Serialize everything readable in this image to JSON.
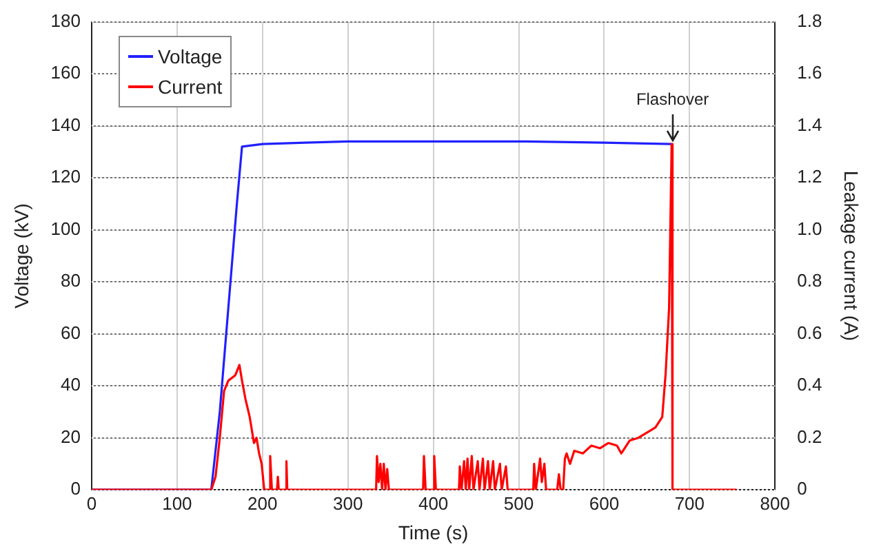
{
  "chart_data": {
    "type": "line",
    "xlabel": "Time (s)",
    "ylabel": "Voltage (kV)",
    "y2label": "Leakage current (A)",
    "xlim": [
      0,
      800
    ],
    "xticks": [
      0,
      100,
      200,
      300,
      400,
      500,
      600,
      700,
      800
    ],
    "ylim": [
      0,
      180
    ],
    "yticks": [
      0,
      20,
      40,
      60,
      80,
      100,
      120,
      140,
      160,
      180
    ],
    "y2lim": [
      0,
      1.8
    ],
    "y2ticks": [
      0,
      0.2,
      0.4,
      0.6,
      0.8,
      {
        "value": 1,
        "label": "1.0"
      },
      1.2,
      1.4,
      1.6,
      1.8
    ],
    "grid": true,
    "legend": "top left",
    "marker": "none",
    "line_style": "solid",
    "annotations": [
      {
        "text": "Flashover",
        "x": 680,
        "y": 133
      }
    ],
    "series": [
      {
        "name": "Voltage",
        "color": "#2020ff",
        "x": [
          0,
          140,
          150,
          160,
          170,
          176,
          200,
          250,
          300,
          400,
          500,
          600,
          679
        ],
        "values": [
          0,
          0,
          30,
          70,
          110,
          132,
          133,
          133.5,
          134,
          134,
          134,
          133.5,
          133
        ]
      },
      {
        "name": "Current",
        "color": "#ff0000",
        "axis": "y2",
        "x": [
          0,
          140,
          145,
          150,
          155,
          160,
          168,
          173,
          176,
          180,
          185,
          190,
          193,
          196,
          199,
          202,
          208,
          209,
          211,
          217,
          218,
          219,
          227,
          228,
          229,
          333,
          334,
          336,
          338,
          340,
          342,
          344,
          346,
          348,
          388,
          389,
          391,
          400,
          401,
          403,
          430,
          431,
          433,
          436,
          438,
          440,
          442,
          445,
          447,
          452,
          454,
          458,
          460,
          464,
          466,
          470,
          472,
          478,
          480,
          485,
          487,
          517,
          518,
          520,
          525,
          527,
          530,
          532,
          545,
          547,
          549,
          552,
          554,
          556,
          560,
          565,
          575,
          585,
          595,
          605,
          615,
          620,
          630,
          640,
          650,
          660,
          668,
          672,
          676,
          679,
          680,
          755
        ],
        "values": [
          0,
          0,
          0.05,
          0.2,
          0.38,
          0.42,
          0.44,
          0.48,
          0.42,
          0.35,
          0.28,
          0.18,
          0.2,
          0.14,
          0.1,
          0,
          0,
          0.13,
          0,
          0,
          0.05,
          0,
          0,
          0.11,
          0,
          0,
          0.13,
          0.03,
          0.1,
          0,
          0.1,
          0,
          0.08,
          0,
          0,
          0.13,
          0,
          0,
          0.13,
          0,
          0,
          0.09,
          0,
          0.11,
          0,
          0.12,
          0,
          0.13,
          0,
          0.11,
          0,
          0.12,
          0,
          0.11,
          0,
          0.11,
          0,
          0.1,
          0,
          0.09,
          0,
          0,
          0.1,
          0,
          0.12,
          0.03,
          0.1,
          0,
          0,
          0.06,
          0,
          0,
          0.12,
          0.14,
          0.1,
          0.15,
          0.14,
          0.17,
          0.16,
          0.18,
          0.17,
          0.14,
          0.19,
          0.2,
          0.22,
          0.24,
          0.28,
          0.45,
          0.7,
          1.33,
          0,
          0
        ]
      }
    ]
  }
}
